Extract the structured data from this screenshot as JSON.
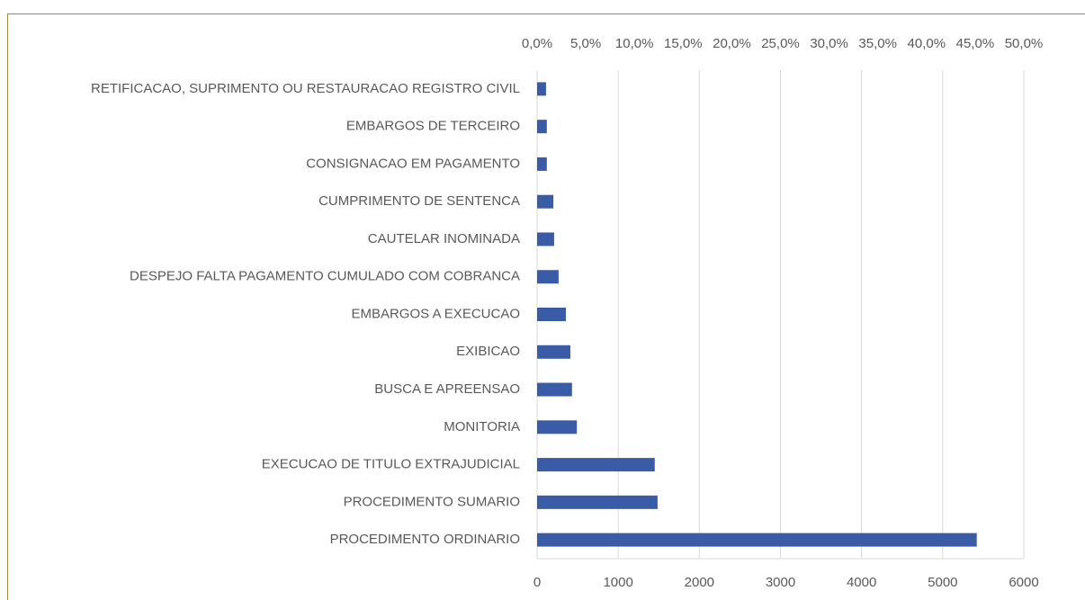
{
  "chart_data": {
    "type": "barh",
    "categories": [
      "RETIFICACAO, SUPRIMENTO OU RESTAURACAO REGISTRO CIVIL",
      "EMBARGOS DE TERCEIRO",
      "CONSIGNACAO EM PAGAMENTO",
      "CUMPRIMENTO DE SENTENCA",
      "CAUTELAR INOMINADA",
      "DESPEJO FALTA PAGAMENTO CUMULADO COM COBRANCA",
      "EMBARGOS A EXECUCAO",
      "EXIBICAO",
      "BUSCA E APREENSAO",
      "MONITORIA",
      "EXECUCAO DE TITULO EXTRAJUDICIAL",
      "PROCEDIMENTO SUMARIO",
      "PROCEDIMENTO ORDINARIO"
    ],
    "values": [
      110,
      120,
      120,
      200,
      210,
      265,
      355,
      410,
      430,
      490,
      1450,
      1485,
      5420
    ],
    "color": "#3a5ba6",
    "xlim": [
      0,
      6000
    ],
    "xticks": [
      0,
      1000,
      2000,
      3000,
      4000,
      5000,
      6000
    ],
    "x2lim": [
      0,
      50
    ],
    "x2ticks": [
      {
        "value": 0,
        "label": "0,0%"
      },
      {
        "value": 5,
        "label": "5,0%"
      },
      {
        "value": 10,
        "label": "10,0%"
      },
      {
        "value": 15,
        "label": "15,0%"
      },
      {
        "value": 20,
        "label": "20,0%"
      },
      {
        "value": 25,
        "label": "25,0%"
      },
      {
        "value": 30,
        "label": "30,0%"
      },
      {
        "value": 35,
        "label": "35,0%"
      },
      {
        "value": 40,
        "label": "40,0%"
      },
      {
        "value": 45,
        "label": "45,0%"
      },
      {
        "value": 50,
        "label": "50,0%"
      }
    ],
    "grid": true
  }
}
